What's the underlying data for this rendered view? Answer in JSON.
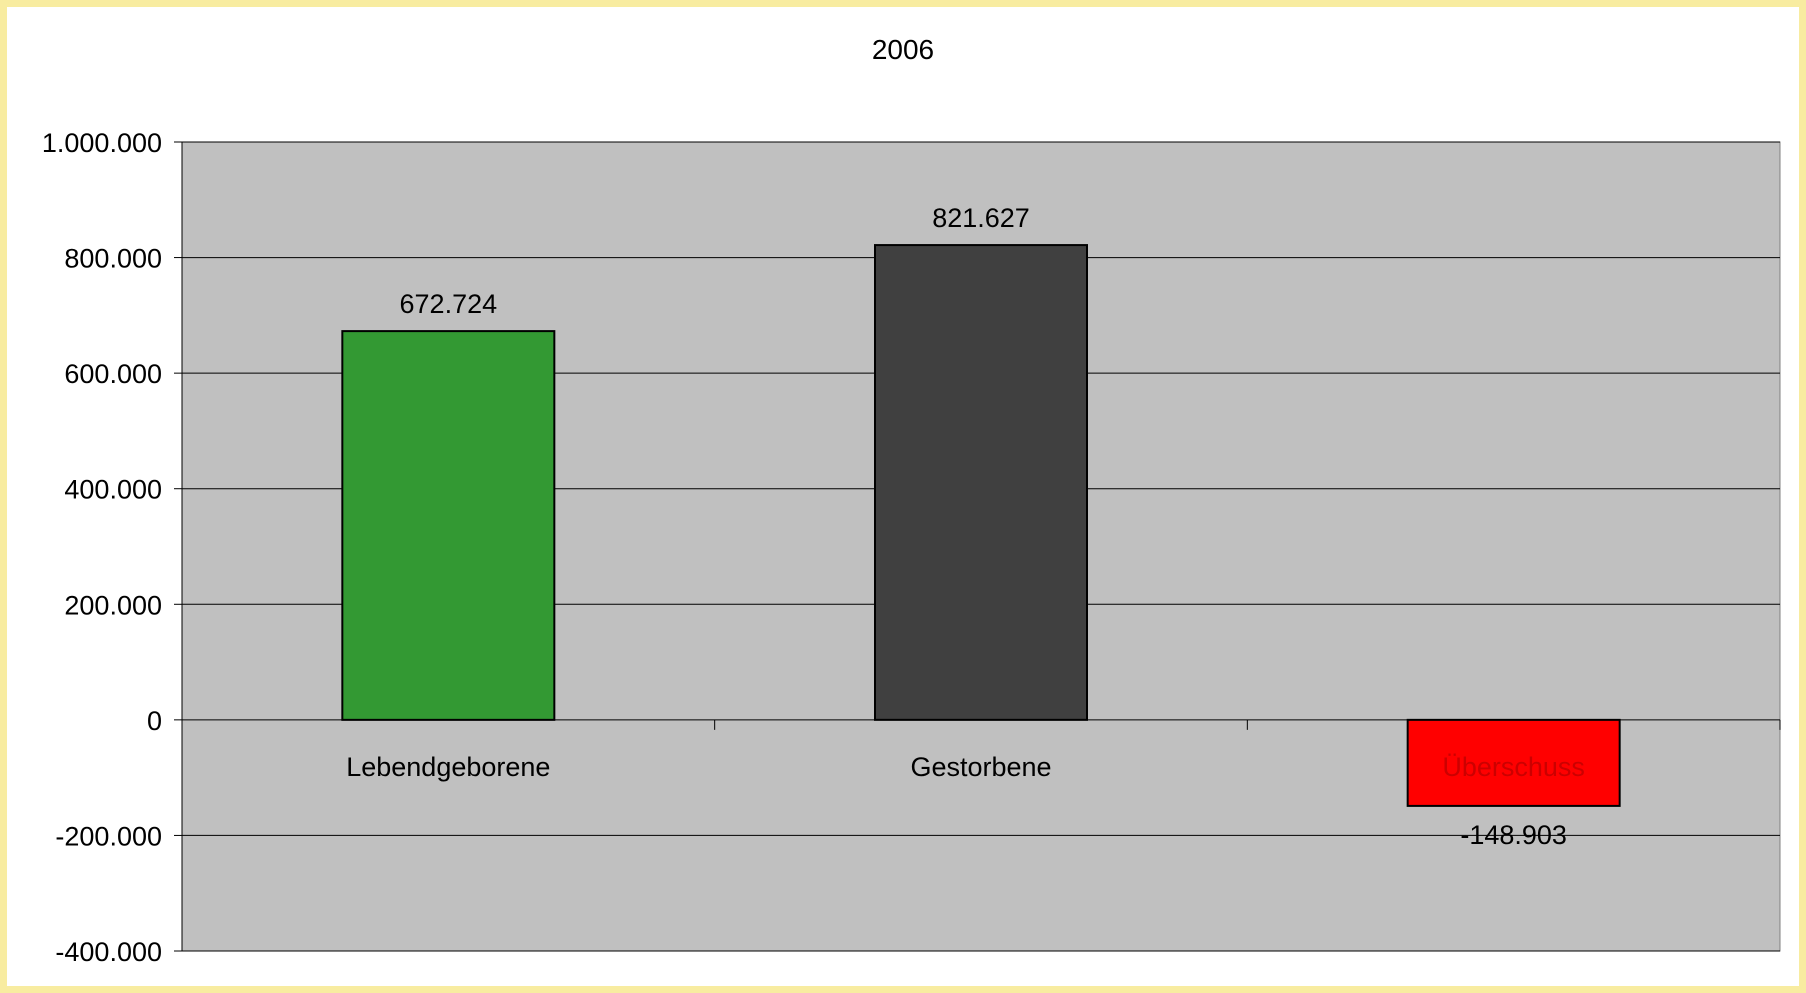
{
  "chart_data": {
    "type": "bar",
    "title": "2006",
    "categories": [
      "Lebendgeborene",
      "Gestorbene",
      "Überschuss"
    ],
    "values": [
      672724,
      821627,
      -148903
    ],
    "value_labels": [
      "672.724",
      "821.627",
      "-148.903"
    ],
    "bar_colors": [
      "#339933",
      "#404040",
      "#ff0000"
    ],
    "category_label_colors": [
      "#000000",
      "#000000",
      "#cc0000"
    ],
    "xlabel": "",
    "ylabel": "",
    "ylim": [
      -400000,
      1000000
    ],
    "yticks": [
      1000000,
      800000,
      600000,
      400000,
      200000,
      0,
      -200000,
      -400000
    ],
    "ytick_labels": [
      "1.000.000",
      "800.000",
      "600.000",
      "400.000",
      "200.000",
      "0",
      "-200.000",
      "-400.000"
    ],
    "grid": true,
    "plot_background": "#c0c0c0",
    "border_color": "#f8eca0",
    "legend": "none"
  }
}
